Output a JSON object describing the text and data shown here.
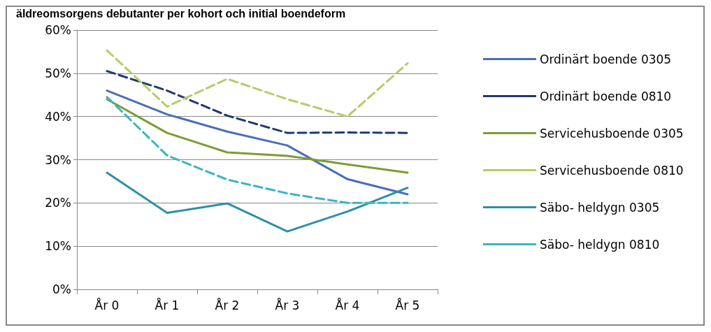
{
  "chart_data": {
    "type": "line",
    "title": "äldreomsorgens debutanter per kohort och initial boendeform",
    "categories": [
      "År 0",
      "År 1",
      "År 2",
      "År 3",
      "År 4",
      "År 5"
    ],
    "series": [
      {
        "name": "Ordinärt boende 0305",
        "color": "#4a6fb5",
        "line_style": "solid",
        "values": [
          46,
          40.5,
          36.5,
          33.3,
          25.5,
          22
        ]
      },
      {
        "name": "Ordinärt boende 0810",
        "color": "#1f3a6e",
        "line_style": "dashed",
        "values": [
          50.5,
          46,
          40.2,
          36.2,
          36.3,
          36.2
        ]
      },
      {
        "name": "Servicehusboende 0305",
        "color": "#7d9c33",
        "line_style": "solid",
        "values": [
          44,
          36.2,
          31.7,
          30.9,
          28.9,
          27
        ]
      },
      {
        "name": "Servicehusboende 0810",
        "color": "#b5cc6a",
        "line_style": "dashed",
        "values": [
          55.3,
          42.3,
          48.7,
          44,
          40,
          52.3
        ]
      },
      {
        "name": "Säbo- heldygn 0305",
        "color": "#2e8fa8",
        "line_style": "solid",
        "values": [
          27,
          17.7,
          19.9,
          13.4,
          18,
          23.5
        ]
      },
      {
        "name": "Säbo- heldygn 0810",
        "color": "#3ab5c4",
        "line_style": "dashed",
        "values": [
          44.5,
          31,
          25.4,
          22.2,
          20,
          20
        ]
      }
    ],
    "ylim": [
      0,
      60
    ],
    "yticks": [
      {
        "value": 0,
        "label": "0%"
      },
      {
        "value": 10,
        "label": "10%"
      },
      {
        "value": 20,
        "label": "20%"
      },
      {
        "value": 30,
        "label": "30%"
      },
      {
        "value": 40,
        "label": "40%"
      },
      {
        "value": 50,
        "label": "50%"
      },
      {
        "value": 60,
        "label": "60%"
      }
    ],
    "grid": "y",
    "legend": "right",
    "marker": "none"
  }
}
